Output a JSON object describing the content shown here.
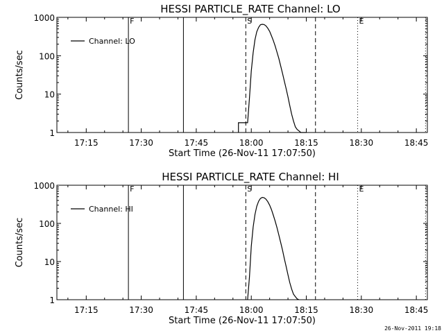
{
  "footer": "26-Nov-2011 19:18",
  "chart_data": [
    {
      "type": "line",
      "title": "HESSI PARTICLE_RATE Channel: LO",
      "xlabel": "Start Time (26-Nov-11 17:07:50)",
      "ylabel": "Counts/sec",
      "xlim": [
        "17:07",
        "18:48"
      ],
      "ylim": [
        1,
        1000
      ],
      "yscale": "log",
      "xticks": [
        "17:15",
        "17:30",
        "17:45",
        "18:00",
        "18:15",
        "18:30",
        "18:45"
      ],
      "yticks": [
        "1",
        "10",
        "100",
        "1000"
      ],
      "grid": false,
      "legend": {
        "position": "top-left",
        "entries": [
          "Channel: LO"
        ]
      },
      "markers": [
        {
          "label": "F",
          "time": "17:26.5",
          "style": "solid"
        },
        {
          "label": "",
          "time": "17:41.5",
          "style": "solid"
        },
        {
          "label": "S",
          "time": "17:58.5",
          "style": "dashed"
        },
        {
          "label": "",
          "time": "18:17.5",
          "style": "dashed"
        },
        {
          "label": "E",
          "time": "18:29",
          "style": "dotted"
        },
        {
          "label": "",
          "time": "18:47.5",
          "style": "dotted"
        }
      ],
      "series": [
        {
          "name": "Channel: LO",
          "x": [
            "17:56.5",
            "17:56.5",
            "17:59",
            "17:59.5",
            "18:00",
            "18:00.5",
            "18:01",
            "18:01.5",
            "18:02",
            "18:02.5",
            "18:03",
            "18:03.5",
            "18:04",
            "18:04.5",
            "18:05",
            "18:05.5",
            "18:06",
            "18:06.5",
            "18:07",
            "18:07.5",
            "18:08",
            "18:08.5",
            "18:09",
            "18:09.5",
            "18:10",
            "18:10.5",
            "18:11",
            "18:11.5",
            "18:12",
            "18:12.5",
            "18:13",
            "18:13.5",
            "18:14",
            "18:14.5",
            "18:15"
          ],
          "y": [
            1,
            1.8,
            1.8,
            8,
            40,
            120,
            260,
            420,
            550,
            640,
            660,
            650,
            600,
            520,
            430,
            330,
            250,
            180,
            125,
            85,
            55,
            35,
            22,
            14,
            8.5,
            5,
            3,
            2,
            1.4,
            1.2,
            1.1,
            1,
            1,
            1,
            1
          ]
        }
      ]
    },
    {
      "type": "line",
      "title": "HESSI PARTICLE_RATE Channel: HI",
      "xlabel": "Start Time (26-Nov-11 17:07:50)",
      "ylabel": "Counts/sec",
      "xlim": [
        "17:07",
        "18:48"
      ],
      "ylim": [
        1,
        1000
      ],
      "yscale": "log",
      "xticks": [
        "17:15",
        "17:30",
        "17:45",
        "18:00",
        "18:15",
        "18:30",
        "18:45"
      ],
      "yticks": [
        "1",
        "10",
        "100",
        "1000"
      ],
      "grid": false,
      "legend": {
        "position": "top-left",
        "entries": [
          "Channel: HI"
        ]
      },
      "markers": [
        {
          "label": "F",
          "time": "17:26.5",
          "style": "solid"
        },
        {
          "label": "",
          "time": "17:41.5",
          "style": "solid"
        },
        {
          "label": "S",
          "time": "17:58.5",
          "style": "dashed"
        },
        {
          "label": "",
          "time": "18:17.5",
          "style": "dashed"
        },
        {
          "label": "E",
          "time": "18:29",
          "style": "dotted"
        },
        {
          "label": "",
          "time": "18:47.5",
          "style": "dotted"
        }
      ],
      "series": [
        {
          "name": "Channel: HI",
          "x": [
            "17:59",
            "17:59.5",
            "18:00",
            "18:00.5",
            "18:01",
            "18:01.5",
            "18:02",
            "18:02.5",
            "18:03",
            "18:03.5",
            "18:04",
            "18:04.5",
            "18:05",
            "18:05.5",
            "18:06",
            "18:06.5",
            "18:07",
            "18:07.5",
            "18:08",
            "18:08.5",
            "18:09",
            "18:09.5",
            "18:10",
            "18:10.5",
            "18:11",
            "18:11.5",
            "18:12",
            "18:12.5",
            "18:13"
          ],
          "y": [
            1,
            4,
            25,
            80,
            170,
            280,
            380,
            450,
            480,
            470,
            430,
            370,
            300,
            230,
            165,
            115,
            78,
            50,
            32,
            20,
            12,
            7.5,
            4.5,
            2.8,
            1.9,
            1.4,
            1.2,
            1.05,
            1
          ]
        }
      ]
    }
  ]
}
